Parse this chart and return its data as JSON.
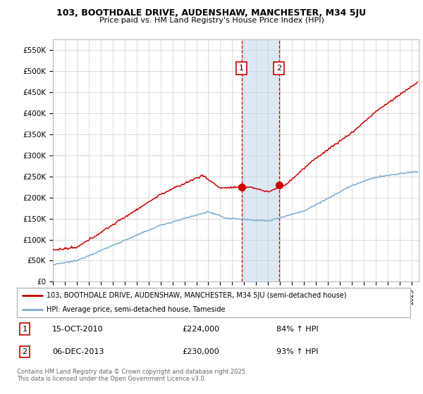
{
  "title1": "103, BOOTHDALE DRIVE, AUDENSHAW, MANCHESTER, M34 5JU",
  "title2": "Price paid vs. HM Land Registry's House Price Index (HPI)",
  "ylabel_vals": [
    0,
    50000,
    100000,
    150000,
    200000,
    250000,
    300000,
    350000,
    400000,
    450000,
    500000,
    550000
  ],
  "ylim": [
    0,
    575000
  ],
  "sale1_x": 2010.79,
  "sale1_y": 224000,
  "sale1_label": "1",
  "sale2_x": 2013.92,
  "sale2_y": 230000,
  "sale2_label": "2",
  "legend_line1": "103, BOOTHDALE DRIVE, AUDENSHAW, MANCHESTER, M34 5JU (semi-detached house)",
  "legend_line2": "HPI: Average price, semi-detached house, Tameside",
  "footnote": "Contains HM Land Registry data © Crown copyright and database right 2025.\nThis data is licensed under the Open Government Licence v3.0.",
  "red_color": "#cc0000",
  "blue_color": "#7aadcf",
  "shading_color": "#dce9f5",
  "background_color": "#ffffff",
  "grid_color": "#cccccc",
  "xlim_left": 1995.0,
  "xlim_right": 2025.6
}
